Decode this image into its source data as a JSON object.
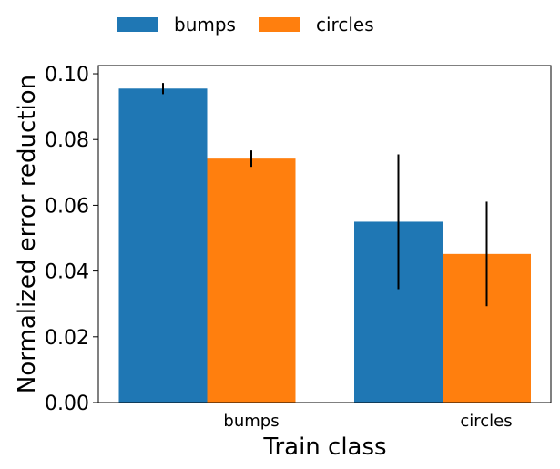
{
  "chart_data": {
    "type": "bar",
    "title": "",
    "xlabel": "Train class",
    "ylabel": "Normalized error reduction",
    "categories": [
      "bumps",
      "circles"
    ],
    "series": [
      {
        "name": "bumps",
        "color": "#1f77b4",
        "values": [
          0.0955,
          0.055
        ],
        "errors": [
          0.0017,
          0.0205
        ]
      },
      {
        "name": "circles",
        "color": "#ff7f0e",
        "values": [
          0.0742,
          0.0452
        ],
        "errors": [
          0.0025,
          0.0159
        ]
      }
    ],
    "ylim": [
      0,
      0.1025
    ],
    "yticks": [
      0,
      0.02,
      0.04,
      0.06,
      0.08,
      0.1
    ],
    "ytick_labels": [
      "0.00",
      "0.02",
      "0.04",
      "0.06",
      "0.08",
      "0.10"
    ],
    "legend_position": "top-left, above plot",
    "grid": false
  }
}
